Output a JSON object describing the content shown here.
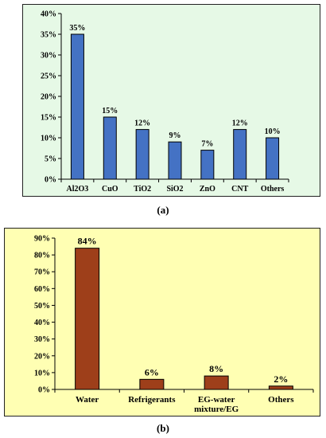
{
  "chart_data": [
    {
      "type": "bar",
      "panel_label": "(a)",
      "categories": [
        "Al2O3",
        "CuO",
        "TiO2",
        "SiO2",
        "ZnO",
        "CNT",
        "Others"
      ],
      "values": [
        35,
        15,
        12,
        9,
        7,
        12,
        10
      ],
      "data_labels": [
        "35%",
        "15%",
        "12%",
        "9%",
        "7%",
        "12%",
        "10%"
      ],
      "yticks": [
        "0%",
        "5%",
        "10%",
        "15%",
        "20%",
        "25%",
        "30%",
        "35%",
        "40%"
      ],
      "ylim": [
        0,
        40
      ],
      "bar_color": "#4472c4",
      "background_color": "#e6f9e6"
    },
    {
      "type": "bar",
      "panel_label": "(b)",
      "categories": [
        "Water",
        "Refrigerants",
        "EG-water mixture/EG",
        "Others"
      ],
      "category_lines": [
        [
          "Water"
        ],
        [
          "Refrigerants"
        ],
        [
          "EG-water",
          "mixture/EG"
        ],
        [
          "Others"
        ]
      ],
      "values": [
        84,
        6,
        8,
        2
      ],
      "data_labels": [
        "84%",
        "6%",
        "8%",
        "2%"
      ],
      "yticks": [
        "0%",
        "10%",
        "20%",
        "30%",
        "40%",
        "50%",
        "60%",
        "70%",
        "80%",
        "90%"
      ],
      "ylim": [
        0,
        90
      ],
      "bar_color": "#9e3f1a",
      "background_color": "#ffffb3"
    }
  ]
}
